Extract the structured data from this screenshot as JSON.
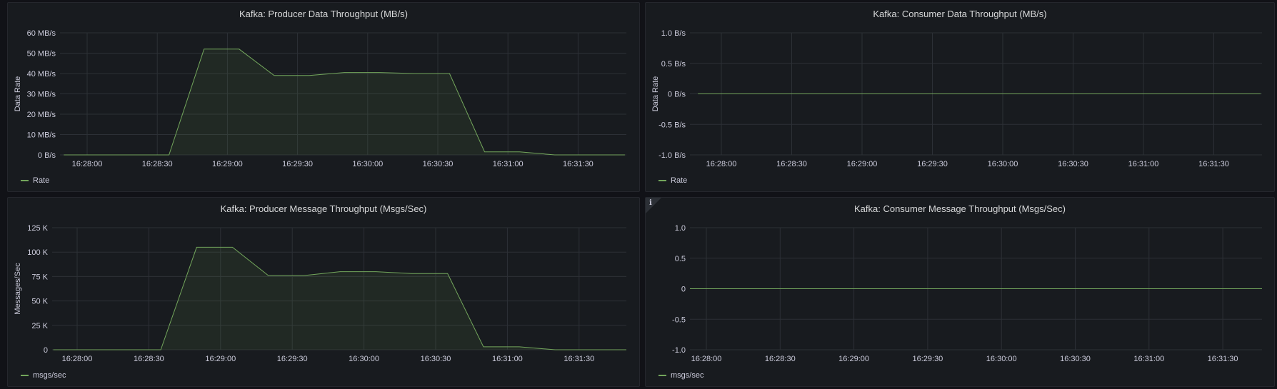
{
  "panels": [
    {
      "title": "Kafka: Producer Data Throughput (MB/s)",
      "legend": "Rate",
      "ylabel": "Data Rate",
      "has_info": false
    },
    {
      "title": "Kafka: Consumer Data Throughput (MB/s)",
      "legend": "Rate",
      "ylabel": "Data Rate",
      "has_info": false
    },
    {
      "title": "Kafka: Producer Message Throughput (Msgs/Sec)",
      "legend": "msgs/sec",
      "ylabel": "Messages/Sec",
      "has_info": false
    },
    {
      "title": "Kafka: Consumer Message Throughput (Msgs/Sec)",
      "legend": "msgs/sec",
      "ylabel": "",
      "has_info": true,
      "info_icon": "info-icon",
      "info_glyph": "i"
    }
  ],
  "colors": {
    "series": "#73a65c",
    "grid": "#2c3036",
    "background": "#181b1f",
    "page": "#111217"
  },
  "chart_data": [
    {
      "type": "area",
      "title": "Kafka: Producer Data Throughput (MB/s)",
      "xlabel": "",
      "ylabel": "Data Rate",
      "x_ticks": [
        "16:28:00",
        "16:28:30",
        "16:29:00",
        "16:29:30",
        "16:30:00",
        "16:30:30",
        "16:31:00",
        "16:31:30"
      ],
      "y_ticks": [
        "0 B/s",
        "10 MB/s",
        "20 MB/s",
        "30 MB/s",
        "40 MB/s",
        "50 MB/s",
        "60 MB/s"
      ],
      "ylim": [
        0,
        60
      ],
      "y_unit": "MB/s",
      "grid": true,
      "legend_position": "bottom-left",
      "series": [
        {
          "name": "Rate",
          "x": [
            "16:27:50",
            "16:28:05",
            "16:28:20",
            "16:28:35",
            "16:28:50",
            "16:29:05",
            "16:29:20",
            "16:29:35",
            "16:29:50",
            "16:30:05",
            "16:30:20",
            "16:30:35",
            "16:30:50",
            "16:31:05",
            "16:31:20",
            "16:31:35",
            "16:31:50"
          ],
          "values": [
            0,
            0,
            0,
            0,
            52,
            52,
            39,
            39,
            40.5,
            40.5,
            40,
            40,
            1.5,
            1.5,
            0,
            0,
            0
          ]
        }
      ]
    },
    {
      "type": "line",
      "title": "Kafka: Consumer Data Throughput (MB/s)",
      "xlabel": "",
      "ylabel": "Data Rate",
      "x_ticks": [
        "16:28:00",
        "16:28:30",
        "16:29:00",
        "16:29:30",
        "16:30:00",
        "16:30:30",
        "16:31:00",
        "16:31:30"
      ],
      "y_ticks": [
        "-1.0 B/s",
        "-0.5 B/s",
        "0 B/s",
        "0.5 B/s",
        "1.0 B/s"
      ],
      "ylim": [
        -1,
        1
      ],
      "y_unit": "B/s",
      "grid": true,
      "legend_position": "bottom-left",
      "series": [
        {
          "name": "Rate",
          "x": [
            "16:27:50",
            "16:31:50"
          ],
          "values": [
            0,
            0
          ]
        }
      ]
    },
    {
      "type": "area",
      "title": "Kafka: Producer Message Throughput (Msgs/Sec)",
      "xlabel": "",
      "ylabel": "Messages/Sec",
      "x_ticks": [
        "16:28:00",
        "16:28:30",
        "16:29:00",
        "16:29:30",
        "16:30:00",
        "16:30:30",
        "16:31:00",
        "16:31:30"
      ],
      "y_ticks": [
        "0",
        "25 K",
        "50 K",
        "75 K",
        "100 K",
        "125 K"
      ],
      "ylim": [
        0,
        125000
      ],
      "grid": true,
      "legend_position": "bottom-left",
      "series": [
        {
          "name": "msgs/sec",
          "x": [
            "16:27:50",
            "16:28:05",
            "16:28:20",
            "16:28:35",
            "16:28:50",
            "16:29:05",
            "16:29:20",
            "16:29:35",
            "16:29:50",
            "16:30:05",
            "16:30:20",
            "16:30:35",
            "16:30:50",
            "16:31:05",
            "16:31:20",
            "16:31:35",
            "16:31:50"
          ],
          "values": [
            0,
            0,
            0,
            0,
            105000,
            105000,
            76000,
            76000,
            80000,
            80000,
            78000,
            78000,
            3000,
            3000,
            0,
            0,
            0
          ]
        }
      ]
    },
    {
      "type": "line",
      "title": "Kafka: Consumer Message Throughput (Msgs/Sec)",
      "xlabel": "",
      "ylabel": "",
      "x_ticks": [
        "16:28:00",
        "16:28:30",
        "16:29:00",
        "16:29:30",
        "16:30:00",
        "16:30:30",
        "16:31:00",
        "16:31:30"
      ],
      "y_ticks": [
        "-1.0",
        "-0.5",
        "0",
        "0.5",
        "1.0"
      ],
      "ylim": [
        -1,
        1
      ],
      "grid": true,
      "legend_position": "bottom-left",
      "series": [
        {
          "name": "msgs/sec",
          "x": [
            "16:27:50",
            "16:31:50"
          ],
          "values": [
            0,
            0
          ]
        }
      ]
    }
  ]
}
